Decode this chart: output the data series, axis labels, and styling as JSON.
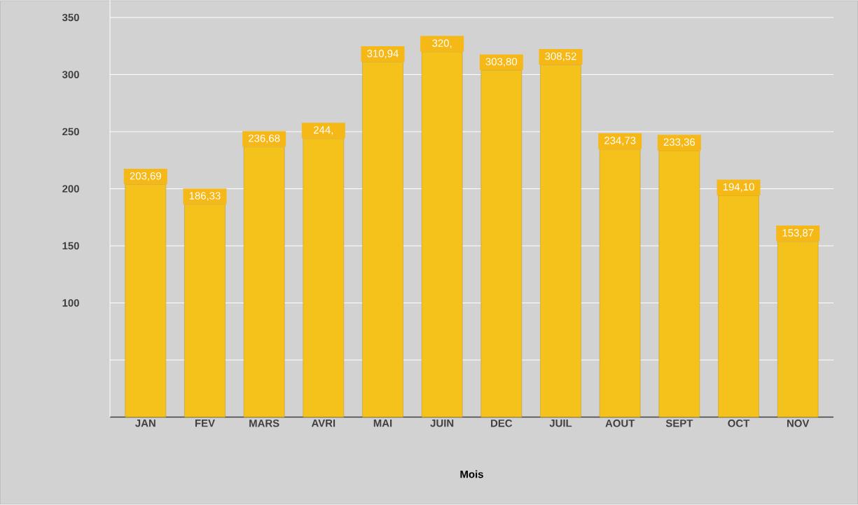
{
  "chart_data": {
    "type": "bar",
    "xlabel": "Mois",
    "categories": [
      "JAN",
      "FEV",
      "MARS",
      "AVRI",
      "MAI",
      "JUIN",
      "DEC",
      "JUIL",
      "AOUT",
      "SEPT",
      "OCT",
      "NOV"
    ],
    "values": [
      203.69,
      186.33,
      236.68,
      244,
      310.94,
      320,
      303.8,
      308.52,
      234.73,
      233.36,
      194.1,
      153.87
    ],
    "value_labels": [
      "203,69",
      "186,33",
      "236,68",
      "244,",
      "310,94",
      "320,",
      "303,80",
      "308,52",
      "234,73",
      "233,36",
      "194,10",
      "153,87"
    ],
    "color": "#f5c21b",
    "ylim": [
      0,
      365
    ],
    "yticks": [
      {
        "value": 50,
        "label": null
      },
      100,
      150,
      200,
      250,
      300,
      350
    ],
    "grid": "y"
  }
}
